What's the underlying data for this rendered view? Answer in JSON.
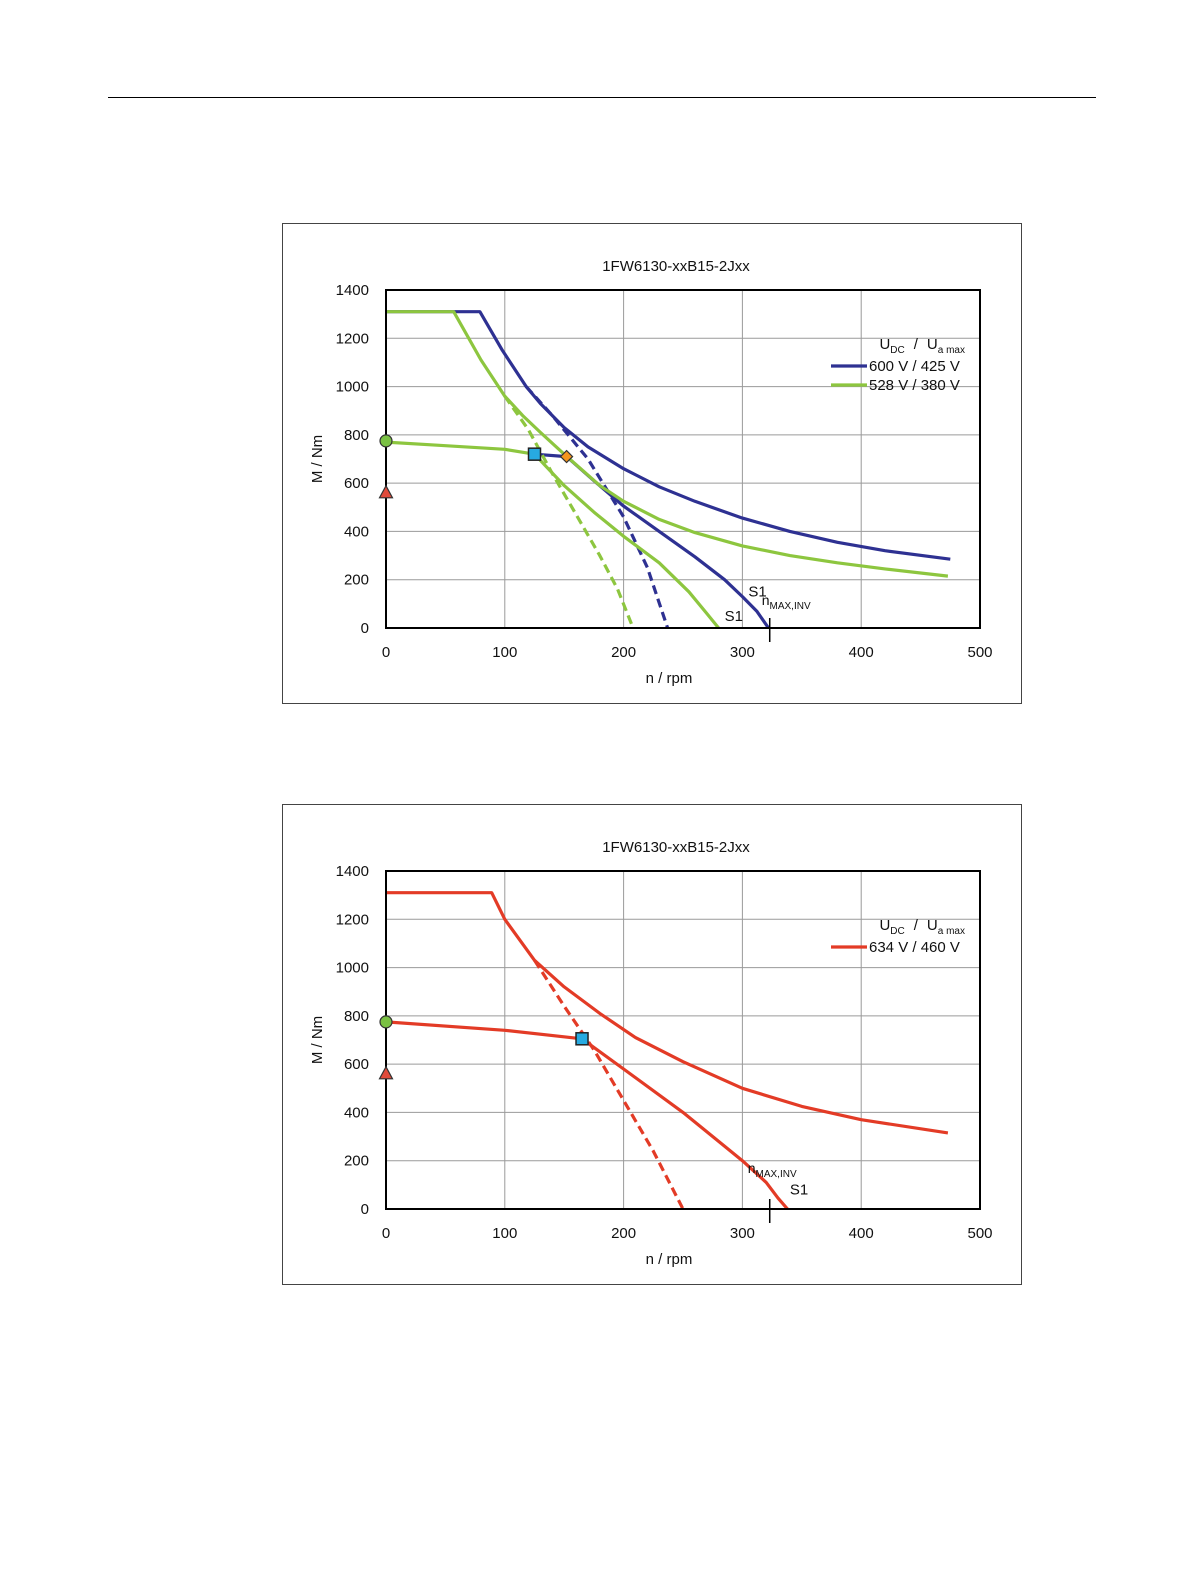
{
  "chart_data": [
    {
      "type": "line",
      "title": "1FW6130-xxB15-2Jxx",
      "xlabel": "n / rpm",
      "ylabel": "M / Nm",
      "xlim": [
        0,
        500
      ],
      "ylim": [
        0,
        1400
      ],
      "xticks": [
        "0",
        "100",
        "200",
        "300",
        "400",
        "500"
      ],
      "yticks": [
        "0",
        "200",
        "400",
        "600",
        "800",
        "1000",
        "1200",
        "1400"
      ],
      "grid": true,
      "legend_position": "top-right",
      "legend_header": {
        "u1": "U",
        "s1": "DC",
        "sep": "/",
        "u2": "U",
        "s2": "a max"
      },
      "series": [
        {
          "name": "600 V / 425 V",
          "color": "#2e3192",
          "style": "solid",
          "x": [
            0,
            79,
            98,
            118,
            130,
            150,
            170,
            200,
            230,
            260,
            300,
            340,
            380,
            420,
            475
          ],
          "y": [
            1310,
            1310,
            1150,
            1000,
            930,
            830,
            750,
            660,
            585,
            525,
            455,
            400,
            355,
            320,
            285
          ]
        },
        {
          "name": "",
          "color": "#2e3192",
          "style": "solid",
          "x": [
            125,
            152,
            175,
            200,
            230,
            260,
            285,
            300,
            312,
            322
          ],
          "y": [
            720,
            710,
            610,
            505,
            400,
            295,
            200,
            130,
            70,
            0
          ]
        },
        {
          "name": "",
          "color": "#2e3192",
          "style": "dashed",
          "x": [
            118,
            140,
            170,
            200,
            220,
            237
          ],
          "y": [
            1000,
            880,
            700,
            460,
            250,
            0
          ]
        },
        {
          "name": "528 V / 380 V",
          "color": "#8dc63f",
          "style": "solid",
          "x": [
            0,
            57,
            80,
            100,
            115,
            130,
            150,
            180,
            200,
            230,
            260,
            300,
            340,
            380,
            420,
            473
          ],
          "y": [
            1310,
            1310,
            1110,
            960,
            880,
            810,
            720,
            590,
            525,
            450,
            395,
            340,
            300,
            270,
            245,
            215
          ]
        },
        {
          "name": "",
          "color": "#8dc63f",
          "style": "solid",
          "x": [
            0,
            50,
            100,
            125,
            150,
            175,
            200,
            230,
            255,
            270,
            280
          ],
          "y": [
            770,
            755,
            740,
            720,
            590,
            480,
            380,
            270,
            150,
            60,
            0
          ]
        },
        {
          "name": "",
          "color": "#8dc63f",
          "style": "dashed",
          "x": [
            100,
            120,
            140,
            160,
            180,
            195,
            208
          ],
          "y": [
            960,
            820,
            640,
            470,
            300,
            160,
            0
          ]
        }
      ],
      "markers": [
        {
          "shape": "circle",
          "x": 0,
          "y": 775,
          "color": "#7ac143"
        },
        {
          "shape": "triangle",
          "x": 0,
          "y": 560,
          "color": "#e04a3a"
        },
        {
          "shape": "square",
          "x": 125,
          "y": 720,
          "color": "#27aae1"
        },
        {
          "shape": "diamond",
          "x": 152,
          "y": 710,
          "color": "#f7941d"
        }
      ],
      "annotations": [
        {
          "text": "S1",
          "x": 305,
          "y": 130
        },
        {
          "text": "S1",
          "x": 285,
          "y": 28
        }
      ],
      "vline": {
        "x": 323,
        "label_main": "n",
        "label_sub": "MAX,INV"
      }
    },
    {
      "type": "line",
      "title": "1FW6130-xxB15-2Jxx",
      "xlabel": "n / rpm",
      "ylabel": "M / Nm",
      "xlim": [
        0,
        500
      ],
      "ylim": [
        0,
        1400
      ],
      "xticks": [
        "0",
        "100",
        "200",
        "300",
        "400",
        "500"
      ],
      "yticks": [
        "0",
        "200",
        "400",
        "600",
        "800",
        "1000",
        "1200",
        "1400"
      ],
      "grid": true,
      "legend_position": "top-right",
      "legend_header": {
        "u1": "U",
        "s1": "DC",
        "sep": "/",
        "u2": "U",
        "s2": "a max"
      },
      "series": [
        {
          "name": "634 V / 460 V",
          "color": "#e33b26",
          "style": "solid",
          "x": [
            0,
            89,
            100,
            125,
            150,
            180,
            210,
            250,
            300,
            350,
            400,
            473
          ],
          "y": [
            1310,
            1310,
            1200,
            1030,
            920,
            810,
            710,
            610,
            500,
            425,
            370,
            315
          ]
        },
        {
          "name": "",
          "color": "#e33b26",
          "style": "solid",
          "x": [
            0,
            100,
            165,
            200,
            250,
            300,
            320,
            330,
            338
          ],
          "y": [
            775,
            740,
            705,
            580,
            400,
            200,
            110,
            45,
            0
          ]
        },
        {
          "name": "",
          "color": "#e33b26",
          "style": "dashed",
          "x": [
            125,
            150,
            175,
            200,
            225,
            250
          ],
          "y": [
            1030,
            840,
            660,
            450,
            240,
            0
          ]
        }
      ],
      "markers": [
        {
          "shape": "circle",
          "x": 0,
          "y": 775,
          "color": "#7ac143"
        },
        {
          "shape": "triangle",
          "x": 0,
          "y": 560,
          "color": "#e04a3a"
        },
        {
          "shape": "square",
          "x": 165,
          "y": 705,
          "color": "#27aae1"
        }
      ],
      "annotations": [
        {
          "text": "S1",
          "x": 340,
          "y": 60
        }
      ],
      "vline": {
        "x": 323,
        "label_main": "n",
        "label_sub": "MAX,INV"
      }
    }
  ]
}
